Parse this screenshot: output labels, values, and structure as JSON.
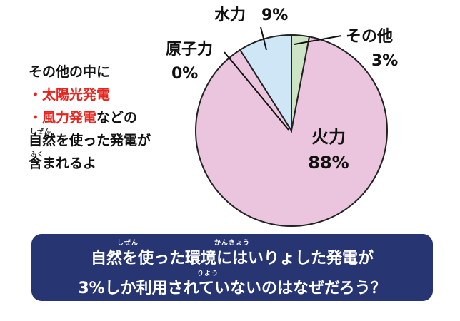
{
  "chart_data": {
    "type": "pie",
    "slices": [
      {
        "name": "火力",
        "value": 88,
        "value_label": "88%",
        "color": "#ebc4dd"
      },
      {
        "name": "原子力",
        "value": 0,
        "value_label": "0%",
        "color": "#ffffff"
      },
      {
        "name": "水力",
        "value": 9,
        "value_label": "9%",
        "color": "#cfe6f7"
      },
      {
        "name": "その他",
        "value": 3,
        "value_label": "3%",
        "color": "#cde5c4"
      }
    ]
  },
  "note": {
    "line1": "その他の中に",
    "line2": "・太陽光発電",
    "line3_red": "・風力発電",
    "line3_rest": "などの",
    "line4": "自然を使った発電が",
    "line4_ruby": "しぜん",
    "line5": "含まれるよ",
    "line5_ruby": "ふく"
  },
  "banner": {
    "line1": "自然を使った環境にはいりょした発電が",
    "line1_ruby_a": "しぜん",
    "line1_ruby_b": "かんきょう",
    "line2": "3%しか利用されていないのはなぜだろう？",
    "line2_ruby": "りよう",
    "background": "#283573"
  }
}
